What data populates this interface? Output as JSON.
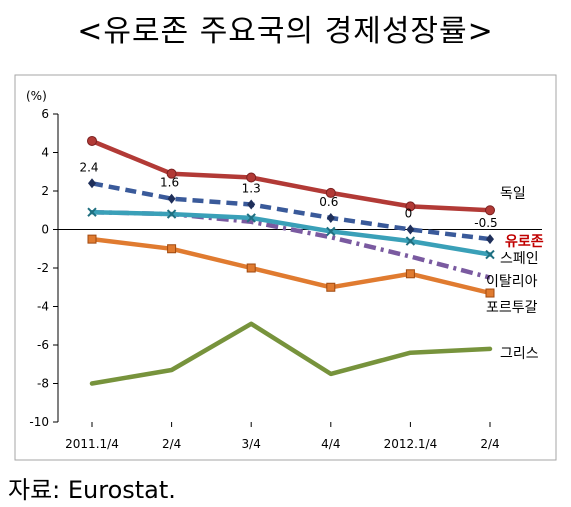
{
  "title": "<유로존 주요국의 경제성장률>",
  "source": "자료:  Eurostat.",
  "chart_data": {
    "type": "line",
    "ylabel": "(%)",
    "ylim": [
      -10,
      6
    ],
    "yticks": [
      6,
      4,
      2,
      0,
      -2,
      -4,
      -6,
      -8,
      -10
    ],
    "categories": [
      "2011.1/4",
      "2/4",
      "3/4",
      "4/4",
      "2012.1/4",
      "2/4"
    ],
    "grid": false,
    "series": [
      {
        "name": "독일",
        "color": "#b23a36",
        "dash": "solid",
        "marker": "circle",
        "values": [
          4.6,
          2.9,
          2.7,
          1.9,
          1.2,
          1.0
        ]
      },
      {
        "name": "유로존",
        "color": "#3a5a9a",
        "dash": "dashed",
        "marker": "diamond",
        "name_color": "#c00000",
        "values": [
          2.4,
          1.6,
          1.3,
          0.6,
          0.0,
          -0.5
        ]
      },
      {
        "name": "스페인",
        "color": "#3aa0b8",
        "dash": "solid",
        "marker": "x",
        "values": [
          0.9,
          0.8,
          0.6,
          -0.1,
          -0.6,
          -1.3
        ]
      },
      {
        "name": "이탈리아",
        "color": "#7a5aa0",
        "dash": "dashdot",
        "marker": "none",
        "values": [
          0.9,
          0.8,
          0.4,
          -0.4,
          -1.4,
          -2.5
        ]
      },
      {
        "name": "포르투갈",
        "color": "#e07b30",
        "dash": "solid",
        "marker": "square",
        "values": [
          -0.5,
          -1.0,
          -2.0,
          -3.0,
          -2.3,
          -3.3
        ]
      },
      {
        "name": "그리스",
        "color": "#77933c",
        "dash": "solid",
        "marker": "none",
        "values": [
          -8.0,
          -7.3,
          -4.9,
          -7.5,
          -6.4,
          -6.2
        ]
      }
    ],
    "data_labels": [
      {
        "series": "유로존",
        "index": 0,
        "text": "2.4"
      },
      {
        "series": "유로존",
        "index": 1,
        "text": "1.6"
      },
      {
        "series": "유로존",
        "index": 2,
        "text": "1.3"
      },
      {
        "series": "유로존",
        "index": 3,
        "text": "0.6"
      },
      {
        "series": "유로존",
        "index": 4,
        "text": "0"
      },
      {
        "series": "유로존",
        "index": 5,
        "text": "-0.5"
      }
    ]
  }
}
